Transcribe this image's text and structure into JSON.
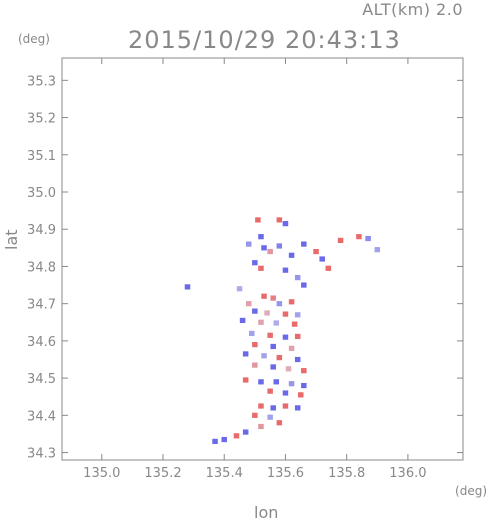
{
  "header": {
    "altitude_label": "ALT(km) 2.0",
    "timestamp": "2015/10/29 20:43:13"
  },
  "chart_data": {
    "type": "heatmap",
    "title": "2015/10/29 20:43:13",
    "xlabel": "lon",
    "ylabel": "lat",
    "x_unit": "(deg)",
    "y_unit": "(deg)",
    "xlim": [
      134.87,
      136.18
    ],
    "ylim": [
      34.28,
      35.36
    ],
    "x_ticks": [
      135.0,
      135.2,
      135.4,
      135.6,
      135.8,
      136.0
    ],
    "x_tick_labels": [
      "135.0",
      "135.2",
      "135.4",
      "135.6",
      "135.8",
      "136.0"
    ],
    "y_ticks": [
      34.3,
      34.4,
      34.5,
      34.6,
      34.7,
      34.8,
      34.9,
      35.0,
      35.1,
      35.2,
      35.3
    ],
    "y_tick_labels": [
      "34.3",
      "34.4",
      "34.5",
      "34.6",
      "34.7",
      "34.8",
      "34.9",
      "35.0",
      "35.1",
      "35.2",
      "35.3"
    ],
    "grid": false,
    "colors": {
      "positive": "#e96a6a",
      "negative": "#6a6ae9",
      "neutral": "#d8d8ee",
      "axis": "#888888"
    },
    "cells": [
      {
        "lon": 135.51,
        "lat": 34.925,
        "v": 1
      },
      {
        "lon": 135.58,
        "lat": 34.925,
        "v": 1
      },
      {
        "lon": 135.6,
        "lat": 34.915,
        "v": -1
      },
      {
        "lon": 135.52,
        "lat": 34.88,
        "v": -1
      },
      {
        "lon": 135.48,
        "lat": 34.86,
        "v": -0.6
      },
      {
        "lon": 135.53,
        "lat": 34.85,
        "v": -1
      },
      {
        "lon": 135.55,
        "lat": 34.84,
        "v": 0.6
      },
      {
        "lon": 135.58,
        "lat": 34.855,
        "v": -0.8
      },
      {
        "lon": 135.62,
        "lat": 34.83,
        "v": -1
      },
      {
        "lon": 135.66,
        "lat": 34.86,
        "v": -1
      },
      {
        "lon": 135.7,
        "lat": 34.84,
        "v": 1
      },
      {
        "lon": 135.72,
        "lat": 34.82,
        "v": -1
      },
      {
        "lon": 135.74,
        "lat": 34.795,
        "v": 1
      },
      {
        "lon": 135.78,
        "lat": 34.87,
        "v": 1
      },
      {
        "lon": 135.84,
        "lat": 34.88,
        "v": 1
      },
      {
        "lon": 135.87,
        "lat": 34.875,
        "v": -0.7
      },
      {
        "lon": 135.5,
        "lat": 34.81,
        "v": -1
      },
      {
        "lon": 135.52,
        "lat": 34.795,
        "v": 1
      },
      {
        "lon": 135.6,
        "lat": 34.79,
        "v": -1
      },
      {
        "lon": 135.64,
        "lat": 34.77,
        "v": -0.6
      },
      {
        "lon": 135.66,
        "lat": 34.75,
        "v": -1
      },
      {
        "lon": 135.53,
        "lat": 34.72,
        "v": 1
      },
      {
        "lon": 135.56,
        "lat": 34.715,
        "v": 0.8
      },
      {
        "lon": 135.48,
        "lat": 34.7,
        "v": 0.5
      },
      {
        "lon": 135.58,
        "lat": 34.7,
        "v": -0.6
      },
      {
        "lon": 135.62,
        "lat": 34.705,
        "v": 1
      },
      {
        "lon": 135.5,
        "lat": 34.68,
        "v": -1
      },
      {
        "lon": 135.54,
        "lat": 34.675,
        "v": 0.4
      },
      {
        "lon": 135.6,
        "lat": 34.672,
        "v": 1
      },
      {
        "lon": 135.64,
        "lat": 34.67,
        "v": -0.5
      },
      {
        "lon": 135.46,
        "lat": 34.655,
        "v": -1
      },
      {
        "lon": 135.52,
        "lat": 34.65,
        "v": 0.5
      },
      {
        "lon": 135.57,
        "lat": 34.648,
        "v": -0.4
      },
      {
        "lon": 135.63,
        "lat": 34.645,
        "v": 1
      },
      {
        "lon": 135.49,
        "lat": 34.62,
        "v": -0.5
      },
      {
        "lon": 135.55,
        "lat": 34.615,
        "v": 1
      },
      {
        "lon": 135.6,
        "lat": 34.61,
        "v": -1
      },
      {
        "lon": 135.64,
        "lat": 34.612,
        "v": 1
      },
      {
        "lon": 135.5,
        "lat": 34.59,
        "v": 1
      },
      {
        "lon": 135.56,
        "lat": 34.585,
        "v": -1
      },
      {
        "lon": 135.62,
        "lat": 34.58,
        "v": 0.5
      },
      {
        "lon": 135.47,
        "lat": 34.565,
        "v": -1
      },
      {
        "lon": 135.53,
        "lat": 34.56,
        "v": -0.5
      },
      {
        "lon": 135.58,
        "lat": 34.555,
        "v": 1
      },
      {
        "lon": 135.64,
        "lat": 34.55,
        "v": -1
      },
      {
        "lon": 135.5,
        "lat": 34.535,
        "v": 0.6
      },
      {
        "lon": 135.56,
        "lat": 34.53,
        "v": -1
      },
      {
        "lon": 135.61,
        "lat": 34.525,
        "v": 0.4
      },
      {
        "lon": 135.66,
        "lat": 34.52,
        "v": 1
      },
      {
        "lon": 135.47,
        "lat": 34.495,
        "v": 1
      },
      {
        "lon": 135.52,
        "lat": 34.49,
        "v": -1
      },
      {
        "lon": 135.57,
        "lat": 34.49,
        "v": -1
      },
      {
        "lon": 135.62,
        "lat": 34.485,
        "v": -0.6
      },
      {
        "lon": 135.66,
        "lat": 34.48,
        "v": -1
      },
      {
        "lon": 135.55,
        "lat": 34.465,
        "v": 1
      },
      {
        "lon": 135.6,
        "lat": 34.46,
        "v": -1
      },
      {
        "lon": 135.65,
        "lat": 34.455,
        "v": 1
      },
      {
        "lon": 135.52,
        "lat": 34.425,
        "v": 1
      },
      {
        "lon": 135.56,
        "lat": 34.42,
        "v": -1
      },
      {
        "lon": 135.6,
        "lat": 34.425,
        "v": 1
      },
      {
        "lon": 135.64,
        "lat": 34.42,
        "v": -1
      },
      {
        "lon": 135.5,
        "lat": 34.4,
        "v": 1
      },
      {
        "lon": 135.55,
        "lat": 34.395,
        "v": -0.5
      },
      {
        "lon": 135.58,
        "lat": 34.38,
        "v": 1
      },
      {
        "lon": 135.52,
        "lat": 34.37,
        "v": 0.6
      },
      {
        "lon": 135.47,
        "lat": 34.355,
        "v": -1
      },
      {
        "lon": 135.44,
        "lat": 34.345,
        "v": 1
      },
      {
        "lon": 135.4,
        "lat": 34.335,
        "v": -1
      },
      {
        "lon": 135.37,
        "lat": 34.33,
        "v": -1
      },
      {
        "lon": 135.28,
        "lat": 34.745,
        "v": -1
      },
      {
        "lon": 135.45,
        "lat": 34.74,
        "v": -0.4
      },
      {
        "lon": 135.9,
        "lat": 34.845,
        "v": -0.5
      }
    ]
  }
}
